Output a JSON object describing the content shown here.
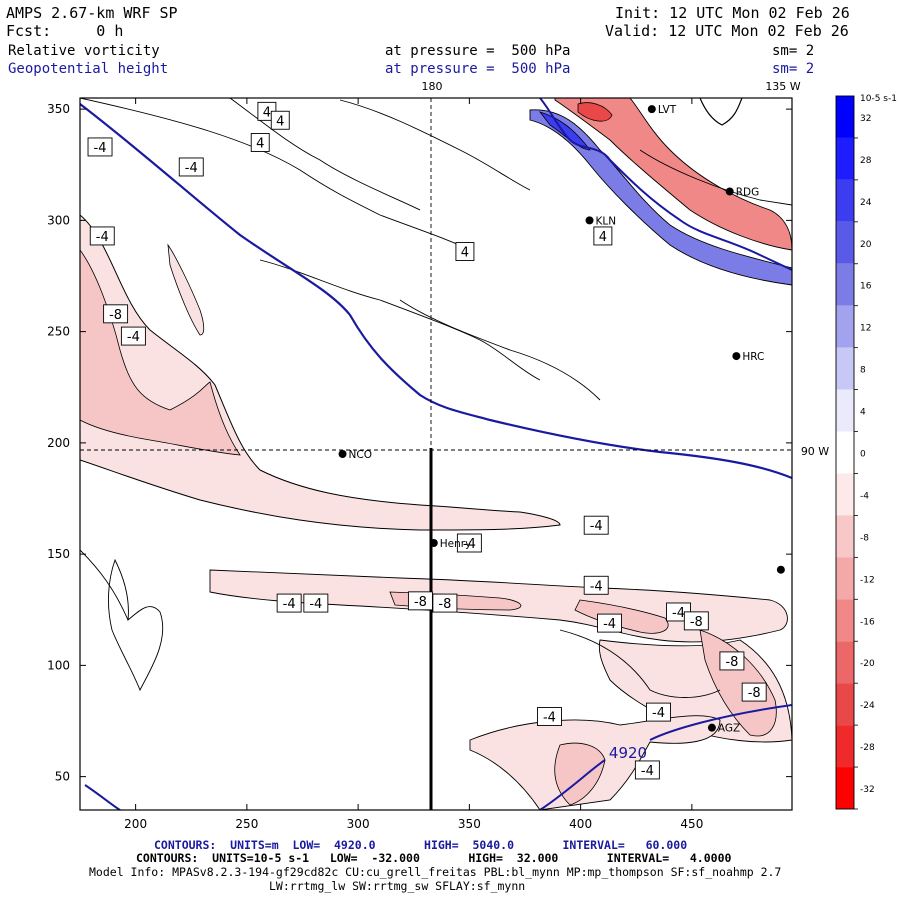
{
  "header": {
    "model": "AMPS 2.67-km WRF SP",
    "fcst": "Fcst:     0 h",
    "init": "Init: 12 UTC Mon 02 Feb 26",
    "valid": "Valid: 12 UTC Mon 02 Feb 26",
    "field1": "Relative vorticity",
    "field2": "Geopotential height",
    "pressure1": "at pressure =  500 hPa",
    "pressure2": "at pressure =  500 hPa",
    "sm1": "sm= 2",
    "sm2": "sm= 2"
  },
  "map": {
    "lon_top_180": "180",
    "lon_top_135": "135 W",
    "lat_right": "90 W",
    "stations": [
      {
        "name": "LVT",
        "x": 432,
        "y": 350
      },
      {
        "name": "RDG",
        "x": 467,
        "y": 313
      },
      {
        "name": "KLN",
        "x": 404,
        "y": 300
      },
      {
        "name": "HRC",
        "x": 470,
        "y": 239
      },
      {
        "name": "NCO",
        "x": 293,
        "y": 195
      },
      {
        "name": "Henry",
        "x": 334,
        "y": 155
      },
      {
        "name": "AGZ",
        "x": 459,
        "y": 72
      },
      {
        "name": "",
        "x": 490,
        "y": 143
      }
    ],
    "height_label": "4920"
  },
  "chart_data": {
    "type": "contour",
    "title": "AMPS 2.67-km WRF SP - Relative vorticity and Geopotential height at 500 hPa",
    "xlim": [
      175,
      495
    ],
    "ylim": [
      35,
      355
    ],
    "x_ticks": [
      200,
      250,
      300,
      350,
      400,
      450
    ],
    "y_ticks": [
      50,
      100,
      150,
      200,
      250,
      300,
      350
    ],
    "cross_section": {
      "x": 334,
      "y_from": 35,
      "y_to": 197
    },
    "dashed_lines": {
      "x": 334,
      "y": 196
    },
    "vorticity_labels": [
      {
        "v": "4",
        "x": 259,
        "y": 349
      },
      {
        "v": "4",
        "x": 265,
        "y": 345
      },
      {
        "v": "4",
        "x": 256,
        "y": 335
      },
      {
        "v": "4",
        "x": 348,
        "y": 286
      },
      {
        "v": "4",
        "x": 410,
        "y": 293
      },
      {
        "v": "-4",
        "x": 184,
        "y": 333
      },
      {
        "v": "-4",
        "x": 225,
        "y": 324
      },
      {
        "v": "-4",
        "x": 185,
        "y": 293
      },
      {
        "v": "-8",
        "x": 191,
        "y": 258
      },
      {
        "v": "-4",
        "x": 199,
        "y": 248
      },
      {
        "v": "-4",
        "x": 407,
        "y": 163
      },
      {
        "v": "-4",
        "x": 350,
        "y": 155
      },
      {
        "v": "-4",
        "x": 407,
        "y": 136
      },
      {
        "v": "-4",
        "x": 269,
        "y": 128
      },
      {
        "v": "-4",
        "x": 281,
        "y": 128
      },
      {
        "v": "-8",
        "x": 328,
        "y": 129
      },
      {
        "v": "-8",
        "x": 339,
        "y": 128
      },
      {
        "v": "-4",
        "x": 444,
        "y": 124
      },
      {
        "v": "-4",
        "x": 413,
        "y": 119
      },
      {
        "v": "-8",
        "x": 452,
        "y": 120
      },
      {
        "v": "-8",
        "x": 468,
        "y": 102
      },
      {
        "v": "-8",
        "x": 478,
        "y": 88
      },
      {
        "v": "-4",
        "x": 435,
        "y": 79
      },
      {
        "v": "-4",
        "x": 386,
        "y": 77
      },
      {
        "v": "-4",
        "x": 430,
        "y": 53
      }
    ],
    "colorbar": {
      "units": "10-5 s-1",
      "levels": [
        32,
        28,
        24,
        20,
        16,
        12,
        8,
        4,
        0,
        -4,
        -8,
        -12,
        -16,
        -20,
        -24,
        -28,
        -32
      ],
      "colors": [
        "#0000ff",
        "#1d1dff",
        "#3c3cf0",
        "#5a5ae8",
        "#7c7ce6",
        "#a2a2ee",
        "#c8c8f6",
        "#eaeafc",
        "#ffffff",
        "#fde9e9",
        "#f8c8c8",
        "#f4a8a8",
        "#f08888",
        "#ec6868",
        "#e84848",
        "#f02a2a",
        "#ff0000"
      ]
    },
    "footer": {
      "line1": "CONTOURS:  UNITS=m  LOW=  4920.0       HIGH=  5040.0       INTERVAL=   60.000",
      "line2": "CONTOURS:  UNITS=10-5 s-1   LOW=  -32.000       HIGH=  32.000       INTERVAL=   4.0000",
      "line3": "Model Info: MPASv8.2.3-194-gf29cd82c CU:cu_grell_freitas PBL:bl_mynn MP:mp_thompson SF:sf_noahmp 2.7",
      "line4": "LW:rrtmg_lw SW:rrtmg_sw SFLAY:sf_mynn"
    }
  }
}
